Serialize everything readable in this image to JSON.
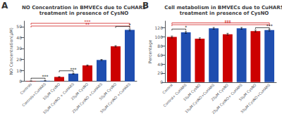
{
  "chart_data": [
    {
      "type": "bar",
      "panel_label": "A",
      "title": "NO Concentration in BMVECs due to CuHARS\ntreatment in presence of CysNO",
      "ylabel": "NO Concentration(μM)",
      "categories": [
        "Controls",
        "Controls+CuHARS",
        "10μM CysNO",
        "10μM CysNO + CuHARS",
        "25μM CysNO",
        "25μM CysNO +CuHARS",
        "50μM CysNO",
        "50μM CysNO +CuHARS"
      ],
      "values": [
        0.3,
        0.5,
        4.0,
        7.0,
        14.5,
        19.5,
        32.0,
        47.0
      ],
      "errors": [
        0.1,
        0.15,
        0.3,
        0.4,
        0.5,
        0.5,
        0.6,
        0.9
      ],
      "colors": [
        "#cc0000",
        "#1f4eb0",
        "#cc0000",
        "#1f4eb0",
        "#cc0000",
        "#1f4eb0",
        "#cc0000",
        "#1f4eb0"
      ],
      "ylim": [
        0,
        55
      ],
      "yticks": [
        0,
        10,
        20,
        30,
        40,
        50
      ],
      "grid": false,
      "annotations": [
        {
          "text": "***",
          "from": "Controls",
          "to": "50μM CysNO +CuHARS",
          "y": 53.0,
          "color": "#cc0000"
        },
        {
          "text": "**",
          "from": "Controls",
          "to": "50μM CysNO +CuHARS",
          "y": 50.5,
          "color": "#cc0000"
        },
        {
          "text": "***",
          "from": "Controls",
          "to": "Controls+CuHARS",
          "y": 2.85,
          "color": "#000000"
        },
        {
          "text": "***",
          "from": "10μM CysNO",
          "to": "10μM CysNO + CuHARS",
          "y": 9.6,
          "color": "#000000"
        },
        {
          "text": "*",
          "from": "50μM CysNO",
          "to": "50μM CysNO +CuHARS",
          "y": 50.1,
          "color": "#000000"
        }
      ]
    },
    {
      "type": "bar",
      "panel_label": "B",
      "title": "Cell metabolism in BMVECs due to CuHARS\ntreatment in presence of CysNO",
      "ylabel": "Percentage",
      "categories": [
        "Control",
        "Control+ CuHARS",
        "10μM CysNO",
        "10μM CysNO+CuHARS",
        "25μM CysNO",
        "25μM CysNO+ CuHARS",
        "50μM CysNO",
        "50μM CysNO+CuHARS"
      ],
      "values": [
        100,
        110,
        96,
        119,
        106,
        119,
        113,
        115
      ],
      "errors": [
        2,
        2,
        2,
        2,
        2,
        2,
        2,
        2
      ],
      "colors": [
        "#cc0000",
        "#1f4eb0",
        "#cc0000",
        "#1f4eb0",
        "#cc0000",
        "#1f4eb0",
        "#cc0000",
        "#1f4eb0"
      ],
      "ylim": [
        0,
        135
      ],
      "yticks": [
        0,
        20,
        40,
        60,
        80,
        100,
        120
      ],
      "grid": false,
      "annotations": [
        {
          "text": "***",
          "from": "Control",
          "to": "50μM CysNO+CuHARS",
          "y": 131,
          "color": "#cc0000"
        },
        {
          "text": "***",
          "from": "Control",
          "to": "50μM CysNO+CuHARS",
          "y": 127,
          "color": "#cc0000"
        },
        {
          "text": "*",
          "from": "Control",
          "to": "Control+ CuHARS",
          "y": 117.4,
          "color": "#000000"
        },
        {
          "text": "***",
          "from": "50μM CysNO",
          "to": "50μM CysNO+CuHARS",
          "y": 120.4,
          "color": "#000000"
        }
      ]
    }
  ]
}
